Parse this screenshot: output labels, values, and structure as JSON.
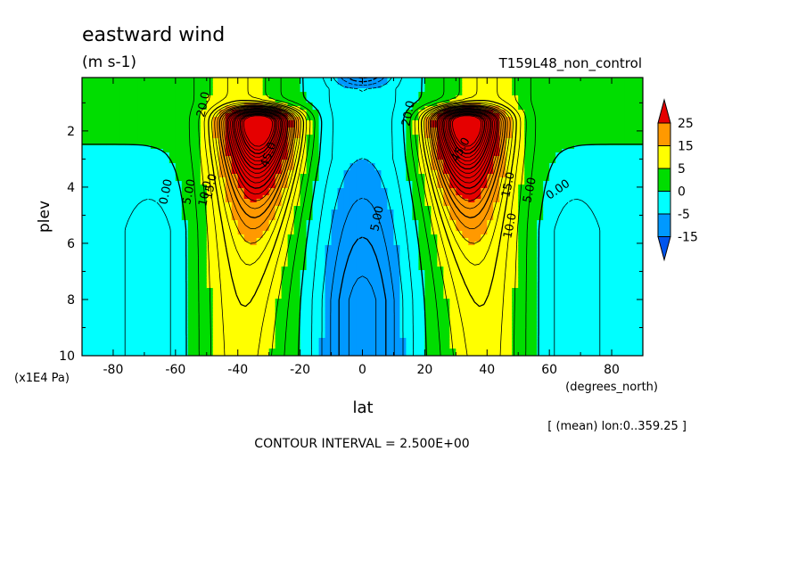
{
  "chart_data": {
    "type": "heatmap",
    "title": "eastward wind",
    "units": "(m s-1)",
    "experiment": "T159L48_non_control",
    "xlabel": "lat",
    "xunits": "(degrees_north)",
    "ylabel": "plev",
    "yunits": "(x1E4 Pa)",
    "xlim": [
      -90,
      90
    ],
    "ylim": [
      10,
      0.1
    ],
    "x_ticks": [
      -80,
      -60,
      -40,
      -20,
      0,
      20,
      40,
      60,
      80
    ],
    "x_tick_labels": [
      "-80",
      "-60",
      "-40",
      "-20",
      "0",
      "20",
      "40",
      "60",
      "80"
    ],
    "y_ticks": [
      2,
      4,
      6,
      8,
      10
    ],
    "y_tick_labels": [
      "2",
      "4",
      "6",
      "8",
      "10"
    ],
    "colorbar": {
      "levels": [
        25,
        15,
        5,
        0,
        -5,
        -15
      ],
      "level_labels": [
        "25",
        "15",
        "5",
        "0",
        "-5",
        "-15"
      ],
      "bands": [
        {
          "range": ">25",
          "color": "#e50000"
        },
        {
          "range": "15 to 25",
          "color": "#ff9900"
        },
        {
          "range": "5 to 15",
          "color": "#ffff00"
        },
        {
          "range": "0 to 5",
          "color": "#00dd00"
        },
        {
          "range": "-5 to 0",
          "color": "#00ffff"
        },
        {
          "range": "-15 to -5",
          "color": "#0099ff"
        },
        {
          "range": "<-15",
          "color": "#0055ee"
        }
      ]
    },
    "jets": [
      {
        "lat": -33,
        "plev": 1.7,
        "max_u": 55
      },
      {
        "lat": 33,
        "plev": 1.7,
        "max_u": 55
      }
    ],
    "contour_labels": [
      "0.00",
      "5.00",
      "10.0",
      "15.0",
      "20.0",
      "45.0",
      "0.00",
      "5.00",
      "10.0",
      "15.0",
      "20.0",
      "45.0",
      "5.00"
    ],
    "contour_interval_text": "CONTOUR INTERVAL = 2.500E+00",
    "averaging_text": "[ (mean) lon:0..359.25 ]"
  },
  "colors": {
    "red": "#e50000",
    "orange": "#ff9900",
    "yellow": "#ffff00",
    "green": "#00dd00",
    "cyan": "#00ffff",
    "blue": "#0099ff",
    "darkblue": "#0055ee"
  }
}
